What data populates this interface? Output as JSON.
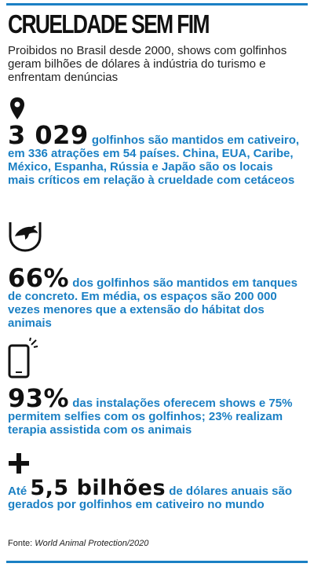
{
  "title": "CRUELDADE SEM FIM",
  "subtitle": "Proibidos no Brasil desde 2000, shows com golfinhos geram bilhões de dólares à indústria do turismo e enfrentam denúncias",
  "facts": [
    {
      "icon": "location-pin-icon",
      "big": "3 029",
      "text": "golfinhos são mantidos em cativeiro, em 336 atrações em 54 países. China, EUA, Caribe, México, Espanha, Rússia e Japão são os locais mais críticos em relação à crueldade com cetáceos"
    },
    {
      "icon": "dolphin-tank-icon",
      "big": "66%",
      "text": "dos golfinhos são mantidos em tanques de concreto. Em média, os espaços são 200 000 vezes menores que a extensão do hábitat dos animais"
    },
    {
      "icon": "smartphone-icon",
      "big": "93%",
      "text": "das instalações oferecem shows e 75% permitem selfies com os golfinhos; 23% realizam terapia assistida com os animais"
    },
    {
      "icon": "plus-icon",
      "prefix": "Até",
      "big": "5,5 bilhões",
      "text": "de dólares anuais são gerados por golfinhos em cativeiro no mundo"
    }
  ],
  "source": {
    "label": "Fonte:",
    "name": "World Animal Protection/2020"
  },
  "colors": {
    "accent": "#1b80c4",
    "text": "#111111"
  }
}
